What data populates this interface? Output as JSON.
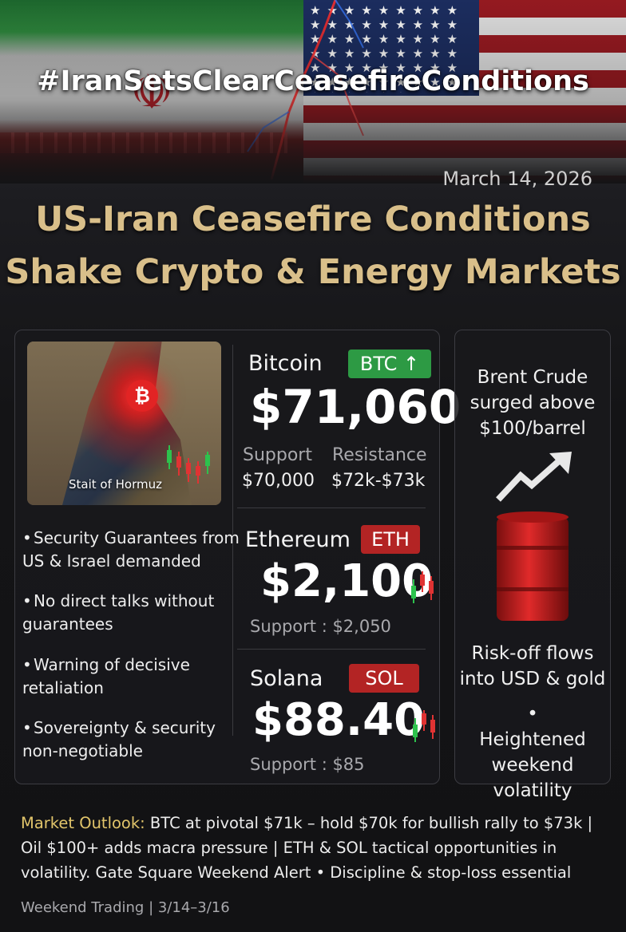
{
  "banner": {
    "hashtag": "#IranSetsClearCeasefireConditions",
    "stars": "★★★★★★★★★★★★★★★★★★★★★★★★★★★★★★★★★★★★★★★★★★★★★★★★★★★★★★★★★★★★"
  },
  "date": "March 14, 2026",
  "headline": {
    "line1": "US-Iran Ceasefire Conditions",
    "line2": "Shake Crypto & Energy Markets"
  },
  "map": {
    "label": "Stait of Hormuz",
    "coin_symbol": "₿"
  },
  "coins": {
    "btc": {
      "name": "Bitcoin",
      "ticker": "BTC",
      "arrow": "↑",
      "price": "$71,060",
      "support_label": "Support",
      "support_value": "$70,000",
      "resistance_label": "Resistance",
      "resistance_value": "$72k-$73k"
    },
    "eth": {
      "name": "Ethereum",
      "ticker": "ETH",
      "price": "$2,100",
      "support": "Support : $2,050"
    },
    "sol": {
      "name": "Solana",
      "ticker": "SOL",
      "price": "$88.40",
      "support": "Support : $85"
    }
  },
  "bullets": [
    {
      "dot": "•",
      "text": "Security Guarantees from US & Israel demanded"
    },
    {
      "dot": "•",
      "text": "No direct talks without guarantees"
    },
    {
      "dot": "•",
      "text": "Warning of decisive retaliation"
    },
    {
      "dot": "•",
      "text": "Sovereignty & security non-negotiable"
    }
  ],
  "right_panel": {
    "oil_text": "Brent Crude surged above $100/barrel",
    "flows_text": "Risk-off flows into USD & gold",
    "volatility_text": "• Heightened weekend volatility"
  },
  "outlook": {
    "label": "Market Outlook:",
    "text": " BTC at pivotal $71k – hold $70k for bullish rally to $73k | Oil $100+ adds macra pressure | ETH & SOL tactical opportunities in volatility. Gate Square Weekend Alert • Discipline & stop-loss essential"
  },
  "footer": "Weekend Trading  |  3/14–3/16",
  "colors": {
    "gold": "#d9bf8a",
    "green_tag": "#2d9a44",
    "red_tag": "#b32424",
    "outlook_label": "#e2c56b"
  }
}
